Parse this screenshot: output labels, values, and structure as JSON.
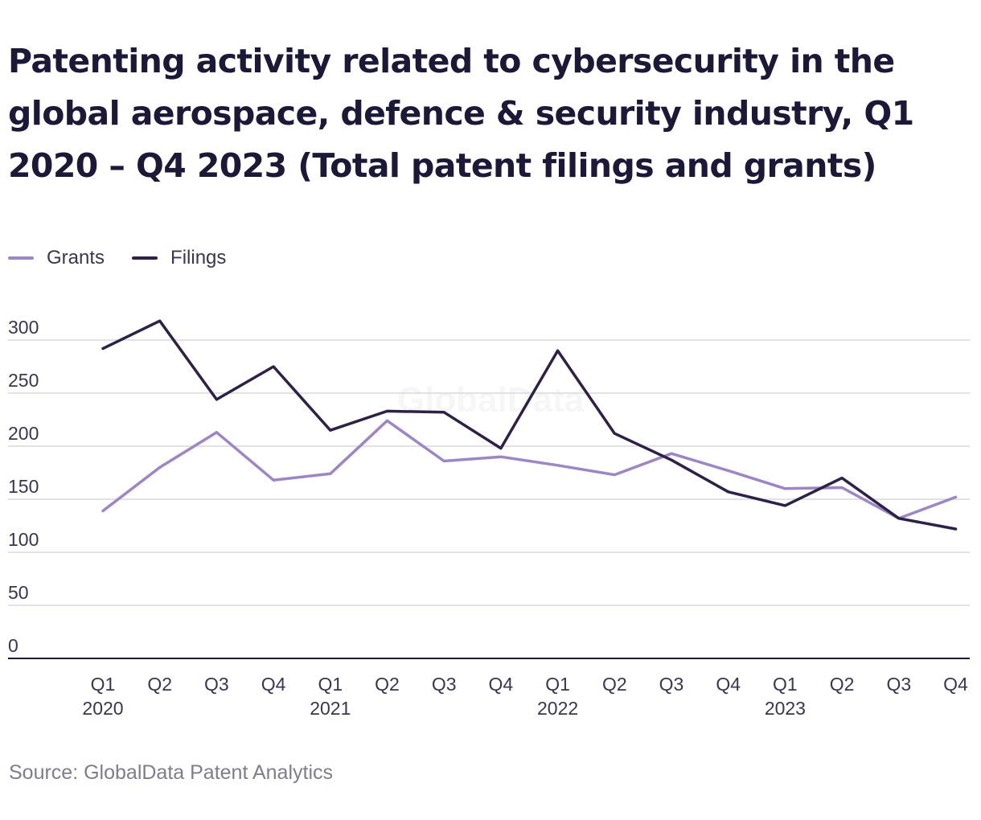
{
  "chart_data": {
    "type": "line",
    "title": "Patenting activity related to cybersecurity in the global aerospace, defence & security industry, Q1 2020 – Q4 2023 (Total patent filings and grants)",
    "source": "Source: GlobalData Patent Analytics",
    "watermark": "GlobalData",
    "categories": [
      "Q1",
      "Q2",
      "Q3",
      "Q4",
      "Q1",
      "Q2",
      "Q3",
      "Q4",
      "Q1",
      "Q2",
      "Q3",
      "Q4",
      "Q1",
      "Q2",
      "Q3",
      "Q4"
    ],
    "year_labels": [
      "2020",
      "",
      "",
      "",
      "2021",
      "",
      "",
      "",
      "2022",
      "",
      "",
      "",
      "2023",
      "",
      "",
      ""
    ],
    "series": [
      {
        "name": "Grants",
        "color": "#9c86c6",
        "values": [
          139,
          180,
          213,
          168,
          174,
          224,
          186,
          190,
          182,
          173,
          193,
          177,
          160,
          161,
          132,
          152
        ]
      },
      {
        "name": "Filings",
        "color": "#2d2147",
        "values": [
          292,
          318,
          244,
          275,
          215,
          233,
          232,
          198,
          290,
          212,
          187,
          157,
          144,
          170,
          132,
          122
        ]
      }
    ],
    "ylim": [
      0,
      300
    ],
    "yticks": [
      0,
      50,
      100,
      150,
      200,
      250,
      300
    ],
    "grid": true,
    "legend_position": "top-left"
  }
}
